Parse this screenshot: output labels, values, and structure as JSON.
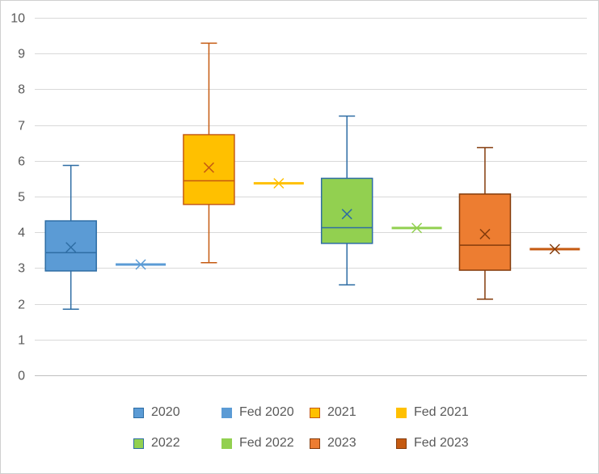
{
  "chart_data": {
    "type": "box",
    "title": "",
    "xlabel": "",
    "ylabel": "",
    "ylim": [
      0,
      10
    ],
    "yticks": [
      0,
      1,
      2,
      3,
      4,
      5,
      6,
      7,
      8,
      9,
      10
    ],
    "grid": true,
    "legend_position": "bottom",
    "series": [
      {
        "name": "2020",
        "kind": "box",
        "min": 1.85,
        "q1": 2.92,
        "median": 3.43,
        "q3": 4.32,
        "max": 5.87,
        "mean": 3.58,
        "fill": "#5B9BD5",
        "stroke": "#2E6DA4"
      },
      {
        "name": "Fed 2020",
        "kind": "point",
        "value": 3.1,
        "mean": 3.1,
        "fill": "#5B9BD5",
        "stroke": "#5B9BD5"
      },
      {
        "name": "2021",
        "kind": "box",
        "min": 3.15,
        "q1": 4.78,
        "median": 5.44,
        "q3": 6.73,
        "max": 9.29,
        "mean": 5.81,
        "fill": "#FFC000",
        "stroke": "#C55A11"
      },
      {
        "name": "Fed 2021",
        "kind": "point",
        "value": 5.37,
        "mean": 5.37,
        "fill": "#FFC000",
        "stroke": "#FFC000"
      },
      {
        "name": "2022",
        "kind": "box",
        "min": 2.53,
        "q1": 3.69,
        "median": 4.13,
        "q3": 5.51,
        "max": 7.25,
        "mean": 4.51,
        "fill": "#92D050",
        "stroke": "#2E6DA4"
      },
      {
        "name": "Fed 2022",
        "kind": "point",
        "value": 4.12,
        "mean": 4.12,
        "fill": "#92D050",
        "stroke": "#92D050"
      },
      {
        "name": "2023",
        "kind": "box",
        "min": 2.13,
        "q1": 2.94,
        "median": 3.64,
        "q3": 5.07,
        "max": 6.37,
        "mean": 3.95,
        "fill": "#ED7D31",
        "stroke": "#843C0C"
      },
      {
        "name": "Fed 2023",
        "kind": "point",
        "value": 3.53,
        "mean": 3.53,
        "fill": "#C55A11",
        "stroke": "#843C0C"
      }
    ]
  },
  "legend": {
    "items": [
      {
        "label": "2020",
        "fill": "#5B9BD5",
        "stroke": "#2E6DA4"
      },
      {
        "label": "Fed 2020",
        "fill": "#5B9BD5",
        "stroke": "#5B9BD5"
      },
      {
        "label": "2021",
        "fill": "#FFC000",
        "stroke": "#C55A11"
      },
      {
        "label": "Fed 2021",
        "fill": "#FFC000",
        "stroke": "#FFC000"
      },
      {
        "label": "2022",
        "fill": "#92D050",
        "stroke": "#2E6DA4"
      },
      {
        "label": "Fed 2022",
        "fill": "#92D050",
        "stroke": "#92D050"
      },
      {
        "label": "2023",
        "fill": "#ED7D31",
        "stroke": "#843C0C"
      },
      {
        "label": "Fed 2023",
        "fill": "#C55A11",
        "stroke": "#843C0C"
      }
    ]
  }
}
